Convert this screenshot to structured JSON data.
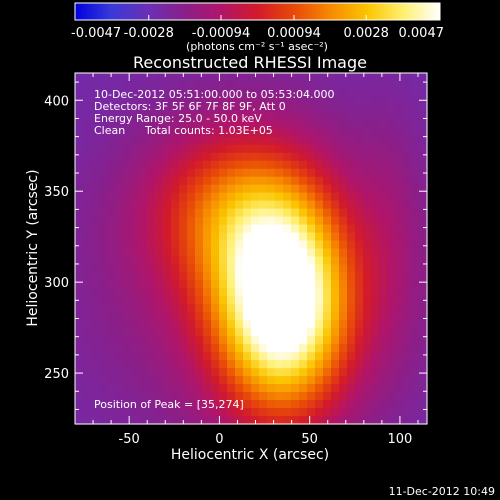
{
  "chart_data": {
    "type": "heatmap",
    "title": "Reconstructed RHESSI Image",
    "xlabel": "Heliocentric X (arcsec)",
    "ylabel": "Heliocentric Y (arcsec)",
    "xlim": [
      -80,
      115
    ],
    "ylim": [
      222,
      415
    ],
    "xticks": [
      -50,
      0,
      50,
      100
    ],
    "yticks": [
      250,
      300,
      350,
      400
    ],
    "colorbar": {
      "placement": "top",
      "min": -0.0047,
      "max": 0.0047,
      "ticks": [
        "-0.0047",
        "-0.0028",
        "-0.00094",
        "0.00094",
        "0.0028",
        "0.0047"
      ],
      "unit_label": "(photons cm⁻² s⁻¹ asec⁻²)",
      "colors": [
        "#0000e0",
        "#3a3ad8",
        "#6a2fb5",
        "#8a1f8a",
        "#b0156a",
        "#d21a2a",
        "#e84a08",
        "#f78a00",
        "#fbc400",
        "#fff070",
        "#ffffff"
      ]
    },
    "annotations": {
      "time_range": "10-Dec-2012 05:51:00.000 to 05:53:04.000",
      "detectors": "Detectors: 3F 5F 6F 7F 8F 9F, Att 0",
      "energy_range": "Energy Range: 25.0 - 50.0 keV",
      "clean_label": "Clean",
      "total_counts": "Total counts: 1.03E+05",
      "peak_position": "Position of Peak = [35,274]"
    },
    "peak": [
      35,
      274
    ],
    "grid": false
  },
  "footer": {
    "timestamp": "11-Dec-2012 10:49"
  }
}
